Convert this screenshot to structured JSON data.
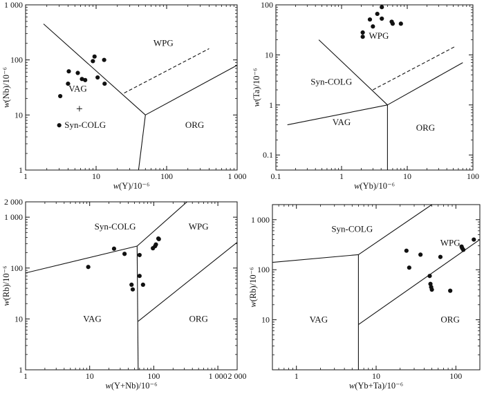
{
  "chart_data": [
    {
      "type": "scatter",
      "id": "nb-y",
      "xlabel": "w(Y)/10⁻⁶",
      "ylabel": "w(Nb)/10⁻⁶",
      "xscale": "log",
      "yscale": "log",
      "xlim": [
        1,
        1000
      ],
      "ylim": [
        1,
        1000
      ],
      "xticks": [
        {
          "v": 1,
          "label": "1"
        },
        {
          "v": 10,
          "label": "10"
        },
        {
          "v": 100,
          "label": "100"
        },
        {
          "v": 1000,
          "label": "1 000"
        }
      ],
      "yticks": [
        {
          "v": 1,
          "label": "1"
        },
        {
          "v": 10,
          "label": "10"
        },
        {
          "v": 100,
          "label": "100"
        },
        {
          "v": 1000,
          "label": "1 000"
        }
      ],
      "lines": [
        {
          "style": "solid",
          "pts": [
            [
              1.8,
              450
            ],
            [
              50,
              10
            ]
          ]
        },
        {
          "style": "solid",
          "pts": [
            [
              50,
              10
            ],
            [
              1000,
              80
            ]
          ]
        },
        {
          "style": "solid",
          "pts": [
            [
              50,
              10
            ],
            [
              40,
              1
            ]
          ]
        },
        {
          "style": "dashed",
          "pts": [
            [
              25,
              25
            ],
            [
              400,
              160
            ]
          ]
        }
      ],
      "regions": [
        {
          "label": "WPG",
          "x": 90,
          "y": 200
        },
        {
          "label": "VAG",
          "x": 5.5,
          "y": 30
        },
        {
          "label": "Syn-COLG",
          "x": 7,
          "y": 6.5
        },
        {
          "label": "ORG",
          "x": 250,
          "y": 6.5
        }
      ],
      "points": [
        [
          3,
          6.5
        ],
        [
          3.1,
          22
        ],
        [
          4,
          37
        ],
        [
          4.1,
          62
        ],
        [
          5.5,
          58
        ],
        [
          6.3,
          45
        ],
        [
          7,
          43
        ],
        [
          9,
          95
        ],
        [
          9.5,
          115
        ],
        [
          10.5,
          48
        ],
        [
          13,
          100
        ],
        [
          13.2,
          37
        ]
      ],
      "crosses": [
        [
          5.8,
          13
        ]
      ]
    },
    {
      "type": "scatter",
      "id": "ta-yb",
      "xlabel": "w(Yb)/10⁻⁶",
      "ylabel": "w(Ta)/10⁻⁶",
      "xscale": "log",
      "yscale": "log",
      "xlim": [
        0.1,
        100
      ],
      "ylim": [
        0.05,
        100
      ],
      "xticks": [
        {
          "v": 0.1,
          "label": "0.1"
        },
        {
          "v": 1,
          "label": "1"
        },
        {
          "v": 10,
          "label": "10"
        },
        {
          "v": 100,
          "label": "100"
        }
      ],
      "yticks": [
        {
          "v": 0.1,
          "label": "0.1"
        },
        {
          "v": 1,
          "label": "1"
        },
        {
          "v": 10,
          "label": "10"
        },
        {
          "v": 100,
          "label": "100"
        }
      ],
      "lines": [
        {
          "style": "solid",
          "pts": [
            [
              0.45,
              20
            ],
            [
              5,
              1
            ]
          ]
        },
        {
          "style": "solid",
          "pts": [
            [
              0.15,
              0.4
            ],
            [
              5,
              1
            ]
          ]
        },
        {
          "style": "solid",
          "pts": [
            [
              5,
              1
            ],
            [
              70,
              7
            ]
          ]
        },
        {
          "style": "solid",
          "pts": [
            [
              5,
              1
            ],
            [
              5,
              0.05
            ]
          ]
        },
        {
          "style": "dashed",
          "pts": [
            [
              3,
              2
            ],
            [
              55,
              15
            ]
          ]
        }
      ],
      "regions": [
        {
          "label": "WPG",
          "x": 3.7,
          "y": 24
        },
        {
          "label": "Syn-COLG",
          "x": 0.7,
          "y": 2.9
        },
        {
          "label": "VAG",
          "x": 1,
          "y": 0.45
        },
        {
          "label": "ORG",
          "x": 19,
          "y": 0.35
        }
      ],
      "points": [
        [
          2.1,
          23
        ],
        [
          2.1,
          28
        ],
        [
          2.7,
          51
        ],
        [
          3,
          37
        ],
        [
          3.5,
          66
        ],
        [
          4.1,
          90
        ],
        [
          4.1,
          53
        ],
        [
          5.8,
          46
        ],
        [
          6,
          42
        ],
        [
          8,
          42
        ]
      ]
    },
    {
      "type": "scatter",
      "id": "rb-ynb",
      "xlabel": "w(Y+Nb)/10⁻⁶",
      "ylabel": "w(Rb)/10⁻⁶",
      "xscale": "log",
      "yscale": "log",
      "xlim": [
        1,
        2000
      ],
      "ylim": [
        1,
        2000
      ],
      "xticks": [
        {
          "v": 1,
          "label": "1"
        },
        {
          "v": 10,
          "label": "10"
        },
        {
          "v": 100,
          "label": "100"
        },
        {
          "v": 1000,
          "label": "1 000"
        },
        {
          "v": 2000,
          "label": "2 000"
        }
      ],
      "yticks": [
        {
          "v": 1,
          "label": "1"
        },
        {
          "v": 10,
          "label": "10"
        },
        {
          "v": 100,
          "label": "100"
        },
        {
          "v": 1000,
          "label": "1 000"
        },
        {
          "v": 2000,
          "label": "2 000"
        }
      ],
      "lines": [
        {
          "style": "solid",
          "pts": [
            [
              1,
              80
            ],
            [
              55,
              270
            ]
          ]
        },
        {
          "style": "solid",
          "pts": [
            [
              55,
              270
            ],
            [
              330,
              2000
            ]
          ]
        },
        {
          "style": "solid",
          "pts": [
            [
              55,
              270
            ],
            [
              57,
              1
            ]
          ]
        },
        {
          "style": "solid",
          "pts": [
            [
              57,
              9
            ],
            [
              2000,
              320
            ]
          ]
        }
      ],
      "regions": [
        {
          "label": "Syn-COLG",
          "x": 25,
          "y": 650
        },
        {
          "label": "WPG",
          "x": 500,
          "y": 650
        },
        {
          "label": "VAG",
          "x": 11,
          "y": 10
        },
        {
          "label": "ORG",
          "x": 500,
          "y": 10
        }
      ],
      "points": [
        [
          9.5,
          105
        ],
        [
          24,
          240
        ],
        [
          35,
          190
        ],
        [
          45,
          47
        ],
        [
          47,
          38
        ],
        [
          60,
          180
        ],
        [
          60,
          70
        ],
        [
          68,
          47
        ],
        [
          97,
          245
        ],
        [
          105,
          270
        ],
        [
          108,
          290
        ],
        [
          118,
          380
        ],
        [
          120,
          370
        ]
      ]
    },
    {
      "type": "scatter",
      "id": "rb-ybta",
      "xlabel": "w(Yb+Ta)/10⁻⁶",
      "ylabel": "w(Rb)/10⁻⁶",
      "xscale": "log",
      "yscale": "log",
      "xlim": [
        0.5,
        200
      ],
      "ylim": [
        1,
        2000
      ],
      "xticks": [
        {
          "v": 1,
          "label": "1"
        },
        {
          "v": 10,
          "label": "10"
        },
        {
          "v": 100,
          "label": "100"
        }
      ],
      "yticks": [
        {
          "v": 10,
          "label": "10"
        },
        {
          "v": 100,
          "label": "100"
        },
        {
          "v": 1000,
          "label": "1 000"
        }
      ],
      "lines": [
        {
          "style": "solid",
          "pts": [
            [
              0.5,
              140
            ],
            [
              6,
              200
            ]
          ]
        },
        {
          "style": "solid",
          "pts": [
            [
              6,
              200
            ],
            [
              50,
              2000
            ]
          ]
        },
        {
          "style": "solid",
          "pts": [
            [
              6,
              200
            ],
            [
              6,
              1
            ]
          ]
        },
        {
          "style": "solid",
          "pts": [
            [
              6,
              8
            ],
            [
              200,
              400
            ]
          ]
        }
      ],
      "regions": [
        {
          "label": "Syn-COLG",
          "x": 5,
          "y": 650
        },
        {
          "label": "WPG",
          "x": 85,
          "y": 340
        },
        {
          "label": "VAG",
          "x": 1.9,
          "y": 10
        },
        {
          "label": "ORG",
          "x": 85,
          "y": 10
        }
      ],
      "points": [
        [
          24,
          240
        ],
        [
          26,
          110
        ],
        [
          36,
          200
        ],
        [
          47,
          75
        ],
        [
          48,
          52
        ],
        [
          49,
          45
        ],
        [
          50,
          40
        ],
        [
          64,
          180
        ],
        [
          85,
          38
        ],
        [
          118,
          290
        ],
        [
          120,
          270
        ],
        [
          124,
          250
        ],
        [
          168,
          400
        ]
      ]
    }
  ]
}
